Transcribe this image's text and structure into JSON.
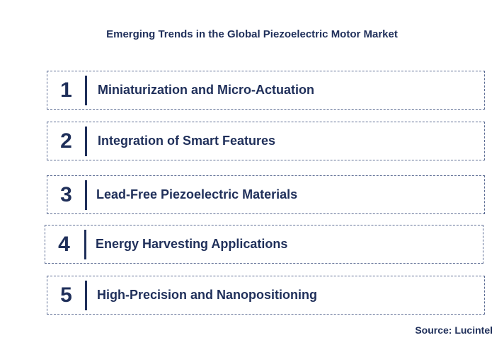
{
  "title": "Emerging Trends in the Global Piezoelectric Motor Market",
  "trends": [
    {
      "number": "1",
      "label": "Miniaturization and Micro-Actuation"
    },
    {
      "number": "2",
      "label": "Integration of Smart Features"
    },
    {
      "number": "3",
      "label": "Lead-Free Piezoelectric Materials"
    },
    {
      "number": "4",
      "label": "Energy Harvesting Applications"
    },
    {
      "number": "5",
      "label": "High-Precision and Nanopositioning"
    }
  ],
  "source": "Source: Lucintel",
  "colors": {
    "text": "#1f2f5a",
    "border": "#5c6c93",
    "background": "#ffffff"
  }
}
